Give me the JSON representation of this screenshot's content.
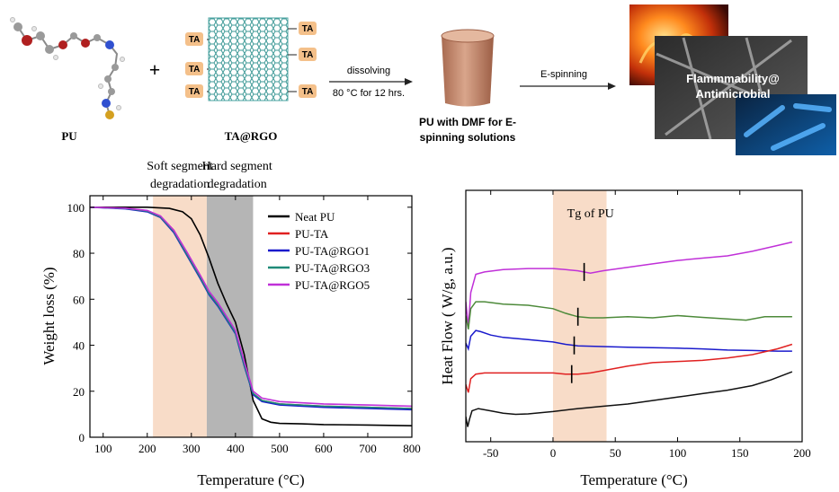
{
  "scheme": {
    "pu_label": "PU",
    "plus": "+",
    "graphene_label": "TA@RGO",
    "ta_tag": "TA",
    "step1_label_top": "dissolving",
    "step1_label_bottom": "80 °C for 12 hrs.",
    "beaker_label_line1": "PU with DMF for E-",
    "beaker_label_line2": "spinning solutions",
    "step2_label": "E-spinning",
    "photo_text_line1": "Flammmability@",
    "photo_text_line2": "Antimicrobial",
    "colors": {
      "ta_tag": "#f4c08a",
      "graphene": "#4aa3a0",
      "beaker": "#c98f72"
    }
  },
  "chart_data": [
    {
      "type": "line",
      "xlabel": "Temperature (°C)",
      "ylabel": "Weight loss (%)",
      "xlim": [
        70,
        800
      ],
      "ylim": [
        0,
        105
      ],
      "xticks": [
        100,
        200,
        300,
        400,
        500,
        600,
        700,
        800
      ],
      "yticks": [
        0,
        20,
        40,
        60,
        80,
        100
      ],
      "grid": false,
      "legend": "top-right",
      "annotations": [
        {
          "text_line1": "Soft segment",
          "text_line2": "degradation",
          "x_range": [
            213,
            335
          ],
          "color": "#f8dcc8"
        },
        {
          "text_line1": "Hard segment",
          "text_line2": "degradation",
          "x_range": [
            335,
            440
          ],
          "color": "#b5b5b5"
        }
      ],
      "series": [
        {
          "name": "Neat PU",
          "color": "#000000",
          "x": [
            70,
            200,
            250,
            280,
            300,
            320,
            340,
            360,
            380,
            400,
            420,
            440,
            460,
            480,
            500,
            550,
            600,
            700,
            800
          ],
          "y": [
            100,
            100,
            99.5,
            98,
            95,
            88,
            78,
            67,
            58,
            50,
            36,
            16,
            8,
            6.5,
            6,
            5.8,
            5.5,
            5.3,
            5
          ]
        },
        {
          "name": "PU-TA",
          "color": "#e02020",
          "x": [
            70,
            150,
            200,
            230,
            260,
            290,
            320,
            340,
            360,
            380,
            400,
            420,
            440,
            460,
            500,
            600,
            700,
            800
          ],
          "y": [
            100,
            99.5,
            98.5,
            96,
            90,
            80,
            70,
            63,
            58,
            52,
            46,
            32,
            19,
            16,
            14.5,
            13.5,
            13,
            12.5
          ]
        },
        {
          "name": "PU-TA@RGO1",
          "color": "#1a1acc",
          "x": [
            70,
            150,
            200,
            230,
            260,
            290,
            320,
            340,
            360,
            380,
            400,
            420,
            440,
            460,
            500,
            600,
            700,
            800
          ],
          "y": [
            100,
            99.3,
            98,
            95.5,
            89,
            79,
            69,
            62,
            57,
            51,
            45,
            31,
            18.5,
            15.5,
            14,
            13,
            12.5,
            12
          ]
        },
        {
          "name": "PU-TA@RGO3",
          "color": "#1f8a78",
          "x": [
            70,
            150,
            200,
            230,
            260,
            290,
            320,
            340,
            360,
            380,
            400,
            420,
            440,
            460,
            500,
            600,
            700,
            800
          ],
          "y": [
            100,
            99.5,
            98.3,
            95.8,
            89.5,
            79.5,
            69.5,
            62.5,
            57.5,
            51.5,
            45.5,
            31.5,
            19,
            16,
            14.5,
            13.5,
            13,
            12.5
          ]
        },
        {
          "name": "PU-TA@RGO5",
          "color": "#c030d8",
          "x": [
            70,
            150,
            200,
            230,
            260,
            290,
            320,
            340,
            360,
            380,
            400,
            420,
            440,
            460,
            500,
            600,
            700,
            800
          ],
          "y": [
            100,
            99.6,
            98.6,
            96.2,
            90,
            80.5,
            70.5,
            63.5,
            58.5,
            52.5,
            46.5,
            33,
            20,
            17,
            15.5,
            14.5,
            14,
            13.5
          ]
        }
      ]
    },
    {
      "type": "line",
      "xlabel": "Temperature (°C)",
      "ylabel": "Heat Flow ( W/g, a.u.)",
      "xlim": [
        -70,
        200
      ],
      "xticks": [
        -50,
        0,
        50,
        100,
        150,
        200
      ],
      "y_ticklabels": false,
      "grid": false,
      "annotations": [
        {
          "text": "Tg of PU",
          "x_range": [
            0,
            43
          ],
          "color": "#f8dcc8"
        }
      ],
      "series": [
        {
          "name": "PU-TA@RGO5",
          "color": "#c030d8",
          "tg_x": 25,
          "x": [
            -70,
            -68,
            -66,
            -62,
            -55,
            -40,
            -20,
            0,
            10,
            20,
            30,
            40,
            60,
            80,
            100,
            120,
            140,
            160,
            180,
            192
          ],
          "y": [
            5.6,
            4.5,
            6.0,
            6.8,
            6.9,
            7.0,
            7.05,
            7.05,
            7.0,
            6.95,
            6.85,
            6.95,
            7.1,
            7.25,
            7.4,
            7.5,
            7.6,
            7.8,
            8.05,
            8.2
          ]
        },
        {
          "name": "PU-TA@RGO3",
          "color": "#4d8a3a",
          "tg_x": 20,
          "x": [
            -70,
            -68,
            -66,
            -62,
            -55,
            -40,
            -20,
            0,
            10,
            20,
            30,
            40,
            60,
            80,
            100,
            120,
            140,
            155,
            170,
            192
          ],
          "y": [
            5.0,
            4.4,
            5.3,
            5.6,
            5.6,
            5.5,
            5.45,
            5.3,
            5.1,
            4.95,
            4.9,
            4.9,
            4.95,
            4.9,
            5.0,
            4.92,
            4.85,
            4.8,
            4.95,
            4.95
          ]
        },
        {
          "name": "PU-TA@RGO1",
          "color": "#1a1acc",
          "tg_x": 17,
          "x": [
            -70,
            -68,
            -66,
            -62,
            -58,
            -50,
            -40,
            -20,
            0,
            10,
            20,
            40,
            60,
            80,
            100,
            120,
            140,
            160,
            180,
            192
          ],
          "y": [
            3.8,
            3.55,
            4.1,
            4.35,
            4.3,
            4.15,
            4.05,
            3.95,
            3.85,
            3.75,
            3.68,
            3.65,
            3.62,
            3.6,
            3.58,
            3.55,
            3.5,
            3.48,
            3.45,
            3.45
          ]
        },
        {
          "name": "PU-TA",
          "color": "#e02020",
          "tg_x": 15,
          "x": [
            -70,
            -68,
            -66,
            -62,
            -55,
            -40,
            -20,
            0,
            10,
            20,
            30,
            40,
            60,
            80,
            100,
            120,
            140,
            160,
            180,
            192
          ],
          "y": [
            2.0,
            1.65,
            2.25,
            2.45,
            2.5,
            2.5,
            2.5,
            2.5,
            2.45,
            2.45,
            2.5,
            2.6,
            2.8,
            2.95,
            3.0,
            3.05,
            3.15,
            3.3,
            3.55,
            3.75
          ]
        },
        {
          "name": "Neat PU",
          "color": "#111111",
          "x": [
            -70,
            -68.5,
            -67,
            -65,
            -60,
            -50,
            -40,
            -30,
            -20,
            0,
            20,
            40,
            60,
            80,
            100,
            120,
            140,
            160,
            175,
            192
          ],
          "y": [
            0.6,
            0.15,
            0.5,
            0.85,
            0.95,
            0.85,
            0.75,
            0.7,
            0.72,
            0.82,
            0.95,
            1.05,
            1.15,
            1.3,
            1.45,
            1.6,
            1.75,
            1.95,
            2.2,
            2.55
          ]
        }
      ]
    }
  ]
}
